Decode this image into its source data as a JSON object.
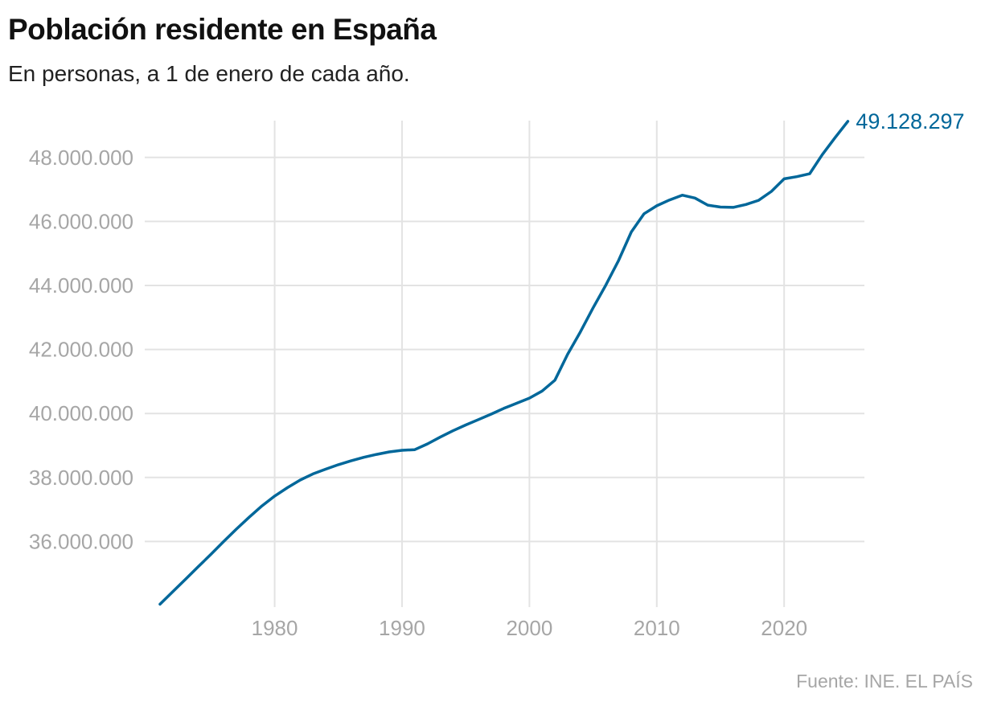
{
  "title": "Población residente en España",
  "subtitle": "En personas, a 1 de enero de cada año.",
  "source": "Fuente: INE. EL PAÍS",
  "chart_data": {
    "type": "line",
    "title": "Población residente en España",
    "subtitle": "En personas, a 1 de enero de cada año.",
    "xlabel": "",
    "ylabel": "",
    "xlim": [
      1969.8,
      2026.3
    ],
    "ylim": [
      33950000,
      49150000
    ],
    "grid": true,
    "line_color": "#00679a",
    "x_ticks": [
      1980,
      1990,
      2000,
      2010,
      2020
    ],
    "x_tick_labels": [
      "1980",
      "1990",
      "2000",
      "2010",
      "2020"
    ],
    "y_ticks": [
      36000000,
      38000000,
      40000000,
      42000000,
      44000000,
      46000000,
      48000000
    ],
    "y_tick_labels": [
      "36.000.000",
      "38.000.000",
      "40.000.000",
      "42.000.000",
      "44.000.000",
      "46.000.000",
      "48.000.000"
    ],
    "end_label": "49.128.297",
    "x": [
      1971,
      1972,
      1973,
      1974,
      1975,
      1976,
      1977,
      1978,
      1979,
      1980,
      1981,
      1982,
      1983,
      1984,
      1985,
      1986,
      1987,
      1988,
      1989,
      1990,
      1991,
      1992,
      1993,
      1994,
      1995,
      1996,
      1997,
      1998,
      1999,
      2000,
      2001,
      2002,
      2003,
      2004,
      2005,
      2006,
      2007,
      2008,
      2009,
      2010,
      2011,
      2012,
      2013,
      2014,
      2015,
      2016,
      2017,
      2018,
      2019,
      2020,
      2021,
      2022,
      2023,
      2024,
      2025
    ],
    "y": [
      34040000,
      34430000,
      34820000,
      35210000,
      35600000,
      36000000,
      36390000,
      36760000,
      37110000,
      37420000,
      37680000,
      37920000,
      38110000,
      38260000,
      38400000,
      38520000,
      38630000,
      38720000,
      38800000,
      38850000,
      38870000,
      39050000,
      39260000,
      39460000,
      39640000,
      39810000,
      39980000,
      40160000,
      40320000,
      40480000,
      40700000,
      41040000,
      41850000,
      42550000,
      43300000,
      44010000,
      44780000,
      45670000,
      46240000,
      46490000,
      46670000,
      46820000,
      46730000,
      46510000,
      46450000,
      46440000,
      46530000,
      46660000,
      46940000,
      47330000,
      47400000,
      47490000,
      48090000,
      48620000,
      49128297
    ]
  }
}
